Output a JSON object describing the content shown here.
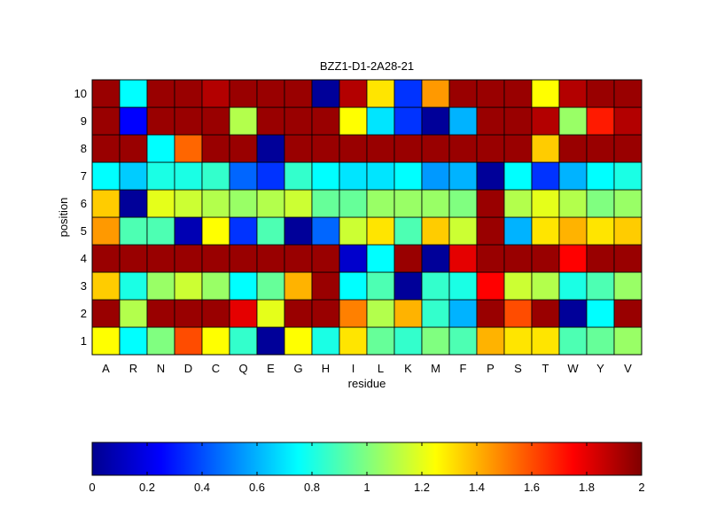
{
  "chart_data": {
    "type": "heatmap",
    "title": "BZZ1-D1-2A28-21",
    "xlabel": "residue",
    "ylabel": "position",
    "x_categories": [
      "A",
      "R",
      "N",
      "D",
      "C",
      "Q",
      "E",
      "G",
      "H",
      "I",
      "L",
      "K",
      "M",
      "F",
      "P",
      "S",
      "T",
      "W",
      "Y",
      "V"
    ],
    "y_categories": [
      "1",
      "2",
      "3",
      "4",
      "5",
      "6",
      "7",
      "8",
      "9",
      "10"
    ],
    "values": [
      [
        1.25,
        0.75,
        1.0,
        1.6,
        1.25,
        0.85,
        0.05,
        1.25,
        0.8,
        1.3,
        0.95,
        0.85,
        1.0,
        0.9,
        1.4,
        1.3,
        1.3,
        0.9,
        0.95,
        1.05
      ],
      [
        1.95,
        1.1,
        1.95,
        1.95,
        1.95,
        1.8,
        1.2,
        1.95,
        1.95,
        1.5,
        1.1,
        1.4,
        0.85,
        0.6,
        1.95,
        1.6,
        1.95,
        0.05,
        0.75,
        1.95
      ],
      [
        1.35,
        0.8,
        1.05,
        1.15,
        1.05,
        0.75,
        0.95,
        1.4,
        1.95,
        0.75,
        0.9,
        0.05,
        0.85,
        0.8,
        1.75,
        1.15,
        1.1,
        0.8,
        0.9,
        1.05
      ],
      [
        1.95,
        1.95,
        1.95,
        1.95,
        1.95,
        1.95,
        1.95,
        1.95,
        1.95,
        0.15,
        0.75,
        1.95,
        0.05,
        1.8,
        1.95,
        1.95,
        1.95,
        1.75,
        1.95,
        1.95
      ],
      [
        1.45,
        0.9,
        0.9,
        0.1,
        1.25,
        0.35,
        0.9,
        0.05,
        0.45,
        1.15,
        1.3,
        0.9,
        1.35,
        1.15,
        1.95,
        0.6,
        1.3,
        1.4,
        1.3,
        1.35
      ],
      [
        1.35,
        0.05,
        1.2,
        1.15,
        1.1,
        1.05,
        1.1,
        1.15,
        0.95,
        0.95,
        1.05,
        1.05,
        1.05,
        1.0,
        1.95,
        1.1,
        1.2,
        1.1,
        1.0,
        1.05
      ],
      [
        0.75,
        0.65,
        0.8,
        0.8,
        0.85,
        0.45,
        0.35,
        0.85,
        0.75,
        0.7,
        0.7,
        0.75,
        0.55,
        0.6,
        0.05,
        0.75,
        0.35,
        0.6,
        0.75,
        0.8
      ],
      [
        1.95,
        1.95,
        0.75,
        1.55,
        1.95,
        1.95,
        0.05,
        1.95,
        1.95,
        1.95,
        1.95,
        1.95,
        1.95,
        1.95,
        1.95,
        1.95,
        1.35,
        1.95,
        1.95,
        1.95
      ],
      [
        1.95,
        0.25,
        1.95,
        1.95,
        1.95,
        1.1,
        1.95,
        1.95,
        1.95,
        1.25,
        0.7,
        0.35,
        0.05,
        0.6,
        1.95,
        1.95,
        1.9,
        1.05,
        1.7,
        1.9
      ],
      [
        1.95,
        0.75,
        1.95,
        1.95,
        1.9,
        1.95,
        1.95,
        1.95,
        0.05,
        1.9,
        1.3,
        0.35,
        1.45,
        1.95,
        1.95,
        1.95,
        1.25,
        1.9,
        1.95,
        1.95
      ]
    ],
    "colorbar": {
      "min": 0,
      "max": 2,
      "ticks": [
        "0",
        "0.2",
        "0.4",
        "0.6",
        "0.8",
        "1",
        "1.2",
        "1.4",
        "1.6",
        "1.8",
        "2"
      ],
      "colormap": "jet",
      "placement": "bottom"
    },
    "grid": false
  }
}
